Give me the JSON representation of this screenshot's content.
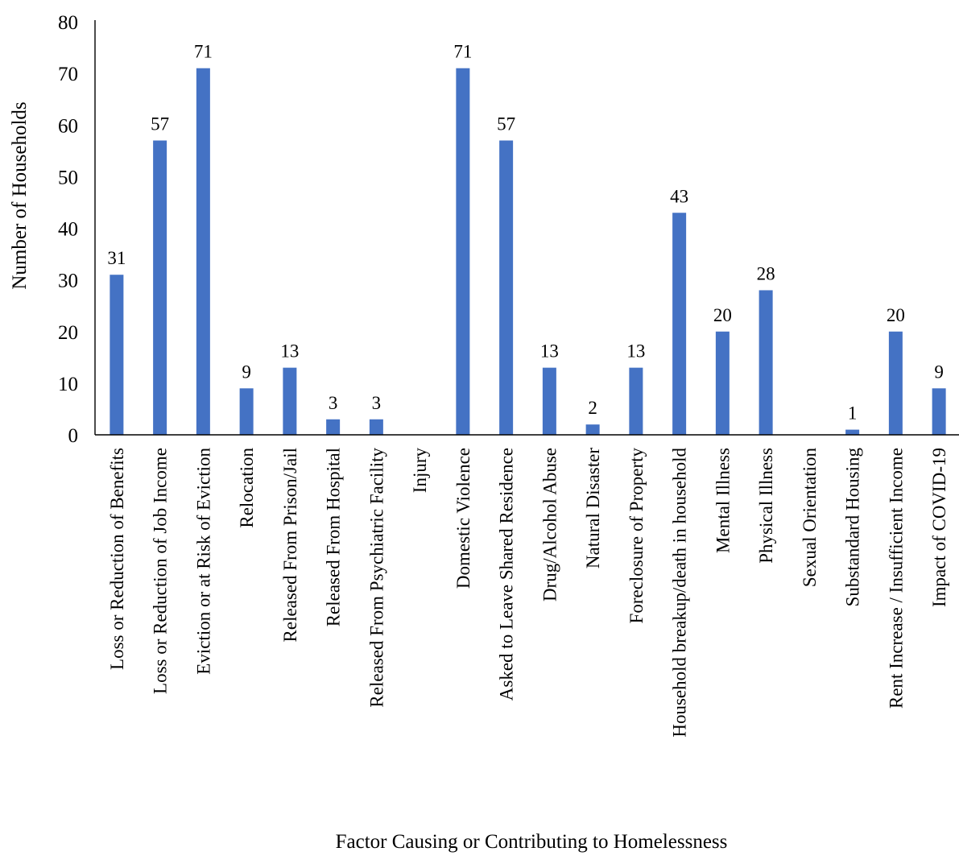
{
  "chart_data": {
    "type": "bar",
    "title": "",
    "xlabel": "Factor Causing or Contributing to Homelessness",
    "ylabel": "Number of Households",
    "ylim": [
      0,
      80
    ],
    "yticks": [
      0,
      10,
      20,
      30,
      40,
      50,
      60,
      70,
      80
    ],
    "grid": false,
    "legend": "none",
    "bar_color": "#4472C4",
    "categories": [
      "Loss or Reduction of Benefits",
      "Loss or Reduction of Job Income",
      "Eviction or at Risk of Eviction",
      "Relocation",
      "Released From Prison/Jail",
      "Released From Hospital",
      "Released From Psychiatric Facility",
      "Injury",
      "Domestic Violence",
      "Asked to Leave Shared Residence",
      "Drug/Alcohol Abuse",
      "Natural Disaster",
      "Foreclosure of Property",
      "Household breakup/death in household",
      "Mental Illness",
      "Physical Illness",
      "Sexual Orientation",
      "Substandard Housing",
      "Rent Increase / Insufficient Income",
      "Impact of COVID-19"
    ],
    "values": [
      31,
      57,
      71,
      9,
      13,
      3,
      3,
      0,
      71,
      57,
      13,
      2,
      13,
      43,
      20,
      28,
      0,
      1,
      20,
      9
    ],
    "data_labels": [
      "31",
      "57",
      "71",
      "9",
      "13",
      "3",
      "3",
      "",
      "71",
      "57",
      "13",
      "2",
      "13",
      "43",
      "20",
      "28",
      "",
      "1",
      "20",
      "9"
    ]
  }
}
